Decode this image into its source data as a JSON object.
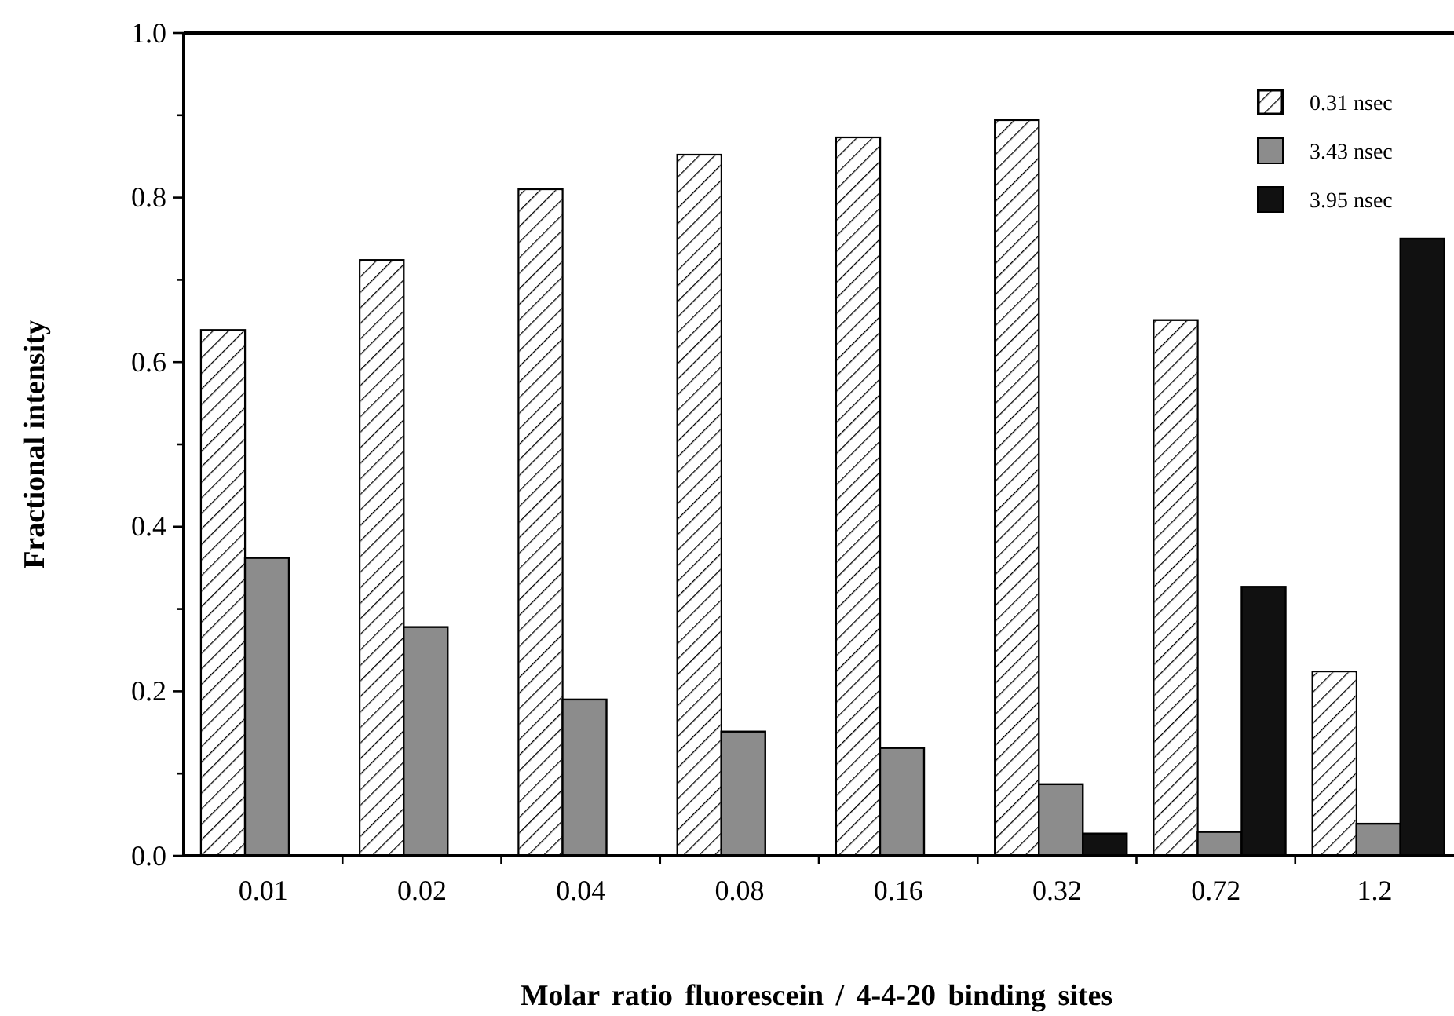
{
  "chart_data": {
    "type": "bar",
    "xlabel": "Molar ratio fluorescein / 4-4-20 binding sites",
    "ylabel": "Fractional intensity",
    "categories": [
      "0.01",
      "0.02",
      "0.04",
      "0.08",
      "0.16",
      "0.32",
      "0.72",
      "1.2"
    ],
    "series": [
      {
        "name": "0.31 nsec",
        "color": "#ffffff",
        "values": [
          0.639,
          0.724,
          0.81,
          0.852,
          0.873,
          0.894,
          0.651,
          0.224
        ]
      },
      {
        "name": "3.43 nsec",
        "color": "#8c8c8c",
        "values": [
          0.362,
          0.278,
          0.19,
          0.151,
          0.131,
          0.087,
          0.029,
          0.039
        ]
      },
      {
        "name": "3.95 nsec",
        "color": "#111111",
        "values": [
          null,
          null,
          null,
          null,
          null,
          0.027,
          0.327,
          0.75
        ]
      }
    ],
    "ylim": [
      0,
      1
    ],
    "yticks": [
      {
        "value": 0,
        "label": "0.0"
      },
      {
        "value": 0.1,
        "label": null
      },
      {
        "value": 0.2,
        "label": "0.2"
      },
      {
        "value": 0.3,
        "label": null
      },
      {
        "value": 0.4,
        "label": "0.4"
      },
      {
        "value": 0.5,
        "label": null
      },
      {
        "value": 0.6,
        "label": "0.6"
      },
      {
        "value": 0.7,
        "label": null
      },
      {
        "value": 0.8,
        "label": "0.8"
      },
      {
        "value": 0.9,
        "label": null
      },
      {
        "value": 1,
        "label": "1.0"
      }
    ],
    "grid": false,
    "legend": "top right"
  }
}
